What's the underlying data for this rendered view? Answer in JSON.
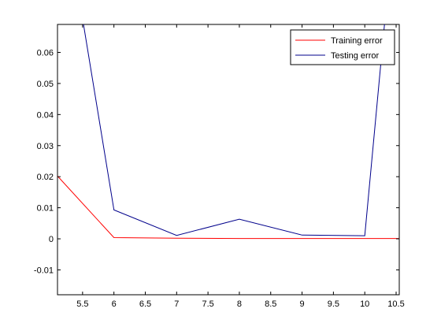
{
  "chart_data": {
    "type": "line",
    "title": "",
    "xlabel": "",
    "ylabel": "",
    "xlim": [
      5.1,
      10.55
    ],
    "ylim": [
      -0.018,
      0.069
    ],
    "grid": false,
    "legend_position": "top-right",
    "xticks": [
      5.5,
      6,
      6.5,
      7,
      7.5,
      8,
      8.5,
      9,
      9.5,
      10,
      10.5
    ],
    "xtick_labels": [
      "5.5",
      "6",
      "6.5",
      "7",
      "7.5",
      "8",
      "8.5",
      "9",
      "9.5",
      "10",
      "10.5"
    ],
    "yticks": [
      -0.01,
      0,
      0.01,
      0.02,
      0.03,
      0.04,
      0.05,
      0.06
    ],
    "ytick_labels": [
      "-0.01",
      "0",
      "0.01",
      "0.02",
      "0.03",
      "0.04",
      "0.05",
      "0.06"
    ],
    "series": [
      {
        "name": "Training error",
        "color": "#ff0000",
        "x": [
          5.1,
          6,
          7,
          8,
          9,
          10,
          10.55
        ],
        "y": [
          0.0202,
          0.0004,
          0.0002,
          0.0001,
          0.0001,
          0.0001,
          0.0001
        ]
      },
      {
        "name": "Testing error",
        "color": "#00008b",
        "x": [
          5.1,
          6,
          7,
          8,
          9,
          10,
          10.55
        ],
        "y": [
          0.12,
          0.0093,
          0.0011,
          0.0063,
          0.0012,
          0.001,
          0.12
        ]
      }
    ]
  }
}
